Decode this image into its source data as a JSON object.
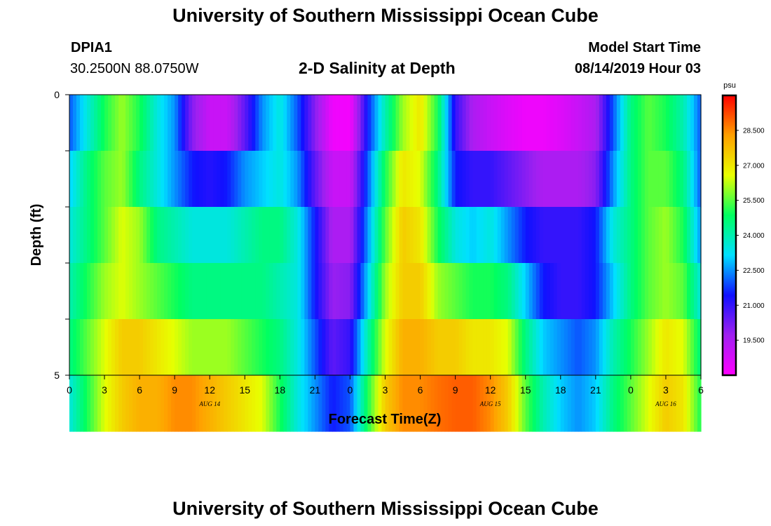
{
  "header": {
    "title": "University of Southern Mississippi Ocean Cube",
    "station": "DPIA1",
    "coords": "30.2500N 88.0750W",
    "subtitle": "2-D Salinity at Depth",
    "model_start_label": "Model Start Time",
    "model_start_value": "08/14/2019 Hour 03",
    "footer_title": "University of Southern Mississippi Ocean Cube"
  },
  "colorbar": {
    "unit": "psu",
    "tick_labels": [
      "28.500",
      "27.000",
      "25.500",
      "24.000",
      "22.500",
      "21.000",
      "19.500"
    ],
    "tick_values": [
      28.5,
      27.0,
      25.5,
      24.0,
      22.5,
      21.0,
      19.5
    ],
    "range": [
      18.0,
      30.0
    ],
    "stops": [
      "#ff00ff",
      "#a020f0",
      "#1010ff",
      "#00e0ff",
      "#00ff60",
      "#e8ff00",
      "#ffa000",
      "#ff0000"
    ]
  },
  "chart_data": {
    "type": "heatmap",
    "title": "2-D Salinity at Depth",
    "xlabel": "Forecast Time(Z)",
    "ylabel": "Depth (ft)",
    "x_tick_labels": [
      "0",
      "3",
      "6",
      "9",
      "12",
      "15",
      "18",
      "21",
      "0",
      "3",
      "6",
      "9",
      "12",
      "15",
      "18",
      "21",
      "0",
      "3",
      "6"
    ],
    "x_hours": [
      0,
      3,
      6,
      9,
      12,
      15,
      18,
      21,
      24,
      27,
      30,
      33,
      36,
      39,
      42,
      45,
      48,
      51,
      54
    ],
    "date_labels": [
      "AUG 14",
      "AUG 15",
      "AUG 16"
    ],
    "date_label_hours": [
      12,
      36,
      51
    ],
    "y_tick_labels": [
      "0",
      "5"
    ],
    "y_range": [
      0,
      5
    ],
    "x_range": [
      0,
      54
    ],
    "depth_levels": [
      0,
      1,
      2,
      3,
      4,
      5
    ],
    "time_hours": [
      0,
      1.5,
      3,
      4.5,
      6,
      7.5,
      9,
      10.5,
      12,
      13.5,
      15,
      16.5,
      18,
      19.5,
      21,
      22.5,
      24,
      25.5,
      27,
      28.5,
      30,
      31.5,
      33,
      34.5,
      36,
      37.5,
      39,
      40.5,
      42,
      43.5,
      45,
      46.5,
      48,
      49.5,
      51,
      52.5,
      54
    ],
    "values": [
      [
        22.0,
        23.5,
        25.0,
        26.0,
        25.0,
        23.5,
        22.5,
        20.0,
        19.0,
        19.0,
        20.5,
        22.5,
        23.5,
        22.0,
        20.0,
        18.3,
        18.2,
        21.5,
        24.0,
        26.0,
        27.0,
        25.0,
        21.0,
        19.5,
        19.0,
        18.6,
        18.3,
        18.3,
        18.6,
        19.0,
        19.5,
        22.0,
        24.5,
        25.5,
        25.0,
        24.0,
        22.0
      ],
      [
        23.0,
        24.5,
        25.5,
        26.0,
        24.5,
        23.5,
        22.5,
        21.5,
        21.2,
        21.5,
        22.5,
        23.0,
        23.5,
        22.5,
        20.5,
        19.0,
        19.0,
        22.0,
        25.0,
        27.0,
        26.5,
        24.5,
        21.5,
        21.0,
        21.0,
        20.5,
        20.0,
        19.5,
        19.5,
        19.5,
        20.0,
        22.5,
        24.5,
        25.5,
        25.5,
        24.5,
        22.0
      ],
      [
        23.5,
        24.5,
        25.5,
        26.5,
        26.0,
        24.5,
        24.0,
        23.5,
        23.5,
        23.5,
        24.0,
        24.5,
        24.5,
        23.5,
        21.5,
        19.5,
        19.5,
        22.5,
        25.5,
        27.5,
        27.0,
        25.0,
        23.5,
        23.0,
        23.5,
        22.5,
        21.5,
        21.0,
        21.0,
        21.0,
        21.5,
        23.5,
        24.5,
        25.5,
        26.0,
        25.0,
        22.5
      ],
      [
        24.0,
        25.0,
        26.0,
        26.5,
        26.0,
        25.5,
        25.0,
        24.5,
        24.5,
        24.5,
        24.5,
        24.5,
        24.0,
        23.5,
        21.5,
        19.8,
        20.0,
        23.0,
        26.0,
        27.5,
        27.5,
        26.0,
        25.5,
        25.0,
        25.0,
        24.5,
        23.0,
        21.5,
        21.0,
        21.0,
        21.5,
        23.0,
        24.5,
        25.5,
        26.0,
        25.5,
        23.5
      ],
      [
        24.5,
        25.5,
        26.5,
        27.5,
        27.5,
        27.0,
        26.5,
        26.0,
        26.0,
        26.0,
        25.5,
        25.0,
        24.5,
        23.5,
        22.0,
        20.5,
        21.0,
        24.0,
        26.5,
        28.0,
        28.0,
        27.5,
        27.5,
        27.0,
        27.0,
        26.5,
        24.5,
        23.0,
        22.5,
        22.0,
        22.5,
        24.0,
        25.0,
        26.0,
        27.0,
        26.5,
        24.5
      ],
      [
        23.5,
        25.0,
        26.5,
        27.5,
        28.0,
        28.0,
        28.5,
        28.5,
        28.0,
        27.5,
        27.0,
        26.5,
        25.0,
        23.5,
        22.5,
        21.5,
        22.0,
        25.0,
        27.5,
        28.5,
        28.5,
        28.8,
        29.0,
        29.0,
        28.5,
        27.5,
        25.5,
        24.0,
        23.0,
        22.5,
        23.0,
        24.5,
        25.5,
        26.5,
        27.5,
        27.0,
        25.0
      ]
    ]
  }
}
